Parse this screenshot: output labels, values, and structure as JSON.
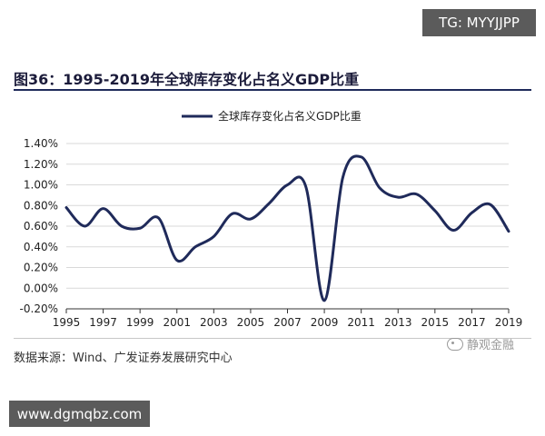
{
  "badges": {
    "tg": "TG: MYYJJPP",
    "url": "www.dgmqbz.com"
  },
  "figure": {
    "title": "图36：1995-2019年全球库存变化占名义GDP比重"
  },
  "source": {
    "text": "数据来源：Wind、广发证券发展研究中心"
  },
  "watermark": {
    "text": "静观金融",
    "icon": "wechat-icon"
  },
  "colors": {
    "line": "#1f2a5a",
    "grid": "#d9d9d9",
    "badge_bg": "#5b5b5b"
  },
  "chart_data": {
    "type": "line",
    "title": "",
    "xlabel": "",
    "ylabel": "",
    "legend": "top-center",
    "x_ticks": [
      "1995",
      "1997",
      "1999",
      "2001",
      "2003",
      "2005",
      "2007",
      "2009",
      "2011",
      "2013",
      "2015",
      "2017",
      "2019"
    ],
    "y_ticks": [
      "1.40%",
      "1.20%",
      "1.00%",
      "0.80%",
      "0.60%",
      "0.40%",
      "0.20%",
      "0.00%",
      "-0.20%"
    ],
    "xlim": [
      1995,
      2019
    ],
    "ylim": [
      -0.2,
      1.4
    ],
    "series": [
      {
        "name": "全球库存变化占名义GDP比重",
        "x": [
          1995,
          1996,
          1997,
          1998,
          1999,
          2000,
          2001,
          2002,
          2003,
          2004,
          2005,
          2006,
          2007,
          2008,
          2009,
          2010,
          2011,
          2012,
          2013,
          2014,
          2015,
          2016,
          2017,
          2018,
          2019
        ],
        "values": [
          0.78,
          0.6,
          0.77,
          0.6,
          0.58,
          0.68,
          0.27,
          0.4,
          0.5,
          0.72,
          0.67,
          0.82,
          1.0,
          0.98,
          -0.12,
          1.07,
          1.27,
          0.97,
          0.88,
          0.91,
          0.75,
          0.56,
          0.73,
          0.81,
          0.55
        ]
      }
    ]
  }
}
